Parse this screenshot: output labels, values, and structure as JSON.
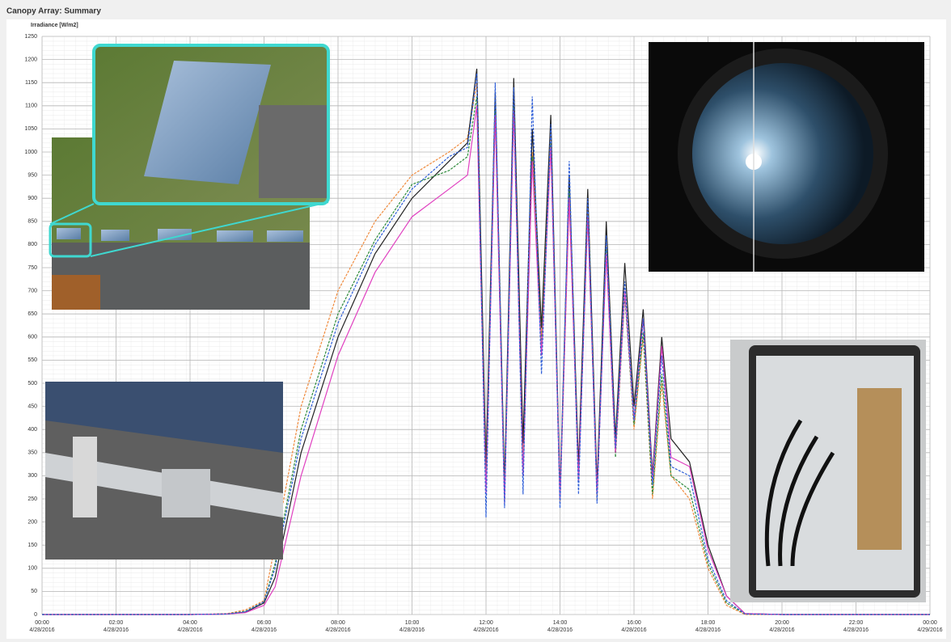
{
  "chart_data": {
    "type": "line",
    "title": "Canopy Array: Summary",
    "y_label": "Irradiance [W/m2]",
    "x": [
      0,
      4,
      5,
      5.5,
      6,
      6.3,
      7,
      8,
      9,
      10,
      11,
      11.5,
      11.75,
      12,
      12.25,
      12.5,
      12.75,
      13,
      13.25,
      13.5,
      13.75,
      14,
      14.25,
      14.5,
      14.75,
      15,
      15.25,
      15.5,
      15.75,
      16,
      16.25,
      16.5,
      16.75,
      17,
      17.5,
      18,
      18.5,
      19,
      20,
      24
    ],
    "series": [
      {
        "color": "#f08a3c",
        "values": [
          0,
          0,
          2,
          10,
          30,
          150,
          450,
          700,
          850,
          950,
          1000,
          1030,
          1150,
          300,
          1100,
          250,
          1120,
          350,
          1000,
          600,
          1050,
          240,
          900,
          300,
          880,
          250,
          800,
          350,
          700,
          400,
          600,
          250,
          500,
          300,
          250,
          100,
          20,
          0,
          0,
          0
        ]
      },
      {
        "color": "#222222",
        "values": [
          0,
          0,
          1,
          5,
          25,
          80,
          350,
          600,
          780,
          900,
          980,
          1020,
          1180,
          320,
          1130,
          280,
          1160,
          370,
          1050,
          620,
          1080,
          260,
          950,
          320,
          920,
          280,
          850,
          380,
          760,
          450,
          660,
          300,
          600,
          380,
          330,
          150,
          40,
          2,
          0,
          0
        ]
      },
      {
        "color": "#2d8a3a",
        "values": [
          0,
          0,
          1,
          7,
          28,
          110,
          400,
          650,
          810,
          930,
          960,
          990,
          1120,
          280,
          1090,
          260,
          1100,
          300,
          990,
          580,
          1020,
          250,
          920,
          290,
          860,
          260,
          790,
          340,
          690,
          410,
          610,
          260,
          520,
          300,
          270,
          110,
          25,
          1,
          0,
          0
        ]
      },
      {
        "color": "#e040c0",
        "values": [
          0,
          0,
          1,
          4,
          20,
          60,
          300,
          560,
          740,
          860,
          920,
          950,
          1100,
          260,
          1080,
          240,
          1090,
          300,
          980,
          560,
          1010,
          250,
          900,
          290,
          860,
          260,
          780,
          350,
          700,
          420,
          640,
          290,
          580,
          340,
          320,
          140,
          40,
          2,
          0,
          0
        ]
      },
      {
        "color": "#2f5fd8",
        "values": [
          0,
          0,
          1,
          6,
          28,
          100,
          380,
          630,
          800,
          920,
          990,
          1010,
          1170,
          210,
          1150,
          230,
          1140,
          260,
          1120,
          520,
          1060,
          230,
          980,
          260,
          900,
          240,
          820,
          360,
          720,
          420,
          640,
          280,
          560,
          320,
          300,
          120,
          30,
          1,
          0,
          0
        ]
      }
    ],
    "xlim": [
      0,
      24
    ],
    "xticks": [
      {
        "value": 0,
        "label": "00:00"
      },
      {
        "value": 2,
        "label": "02:00"
      },
      {
        "value": 4,
        "label": "04:00"
      },
      {
        "value": 6,
        "label": "06:00"
      },
      {
        "value": 8,
        "label": "08:00"
      },
      {
        "value": 10,
        "label": "10:00"
      },
      {
        "value": 12,
        "label": "12:00"
      },
      {
        "value": 14,
        "label": "14:00"
      },
      {
        "value": 16,
        "label": "16:00"
      },
      {
        "value": 18,
        "label": "18:00"
      },
      {
        "value": 20,
        "label": "20:00"
      },
      {
        "value": 22,
        "label": "22:00"
      },
      {
        "value": 24,
        "label": "00:00"
      }
    ],
    "xtick_dates": [
      "4/28/2016",
      "4/28/2016",
      "4/28/2016",
      "4/28/2016",
      "4/28/2016",
      "4/28/2016",
      "4/28/2016",
      "4/28/2016",
      "4/28/2016",
      "4/28/2016",
      "4/28/2016",
      "4/28/2016",
      "4/29/2016"
    ],
    "ylim": [
      0,
      1250
    ],
    "yticks": [
      0,
      50,
      100,
      150,
      200,
      250,
      300,
      350,
      400,
      450,
      500,
      550,
      600,
      650,
      700,
      750,
      800,
      850,
      900,
      950,
      1000,
      1050,
      1100,
      1150,
      1200,
      1250
    ],
    "grid": true
  }
}
